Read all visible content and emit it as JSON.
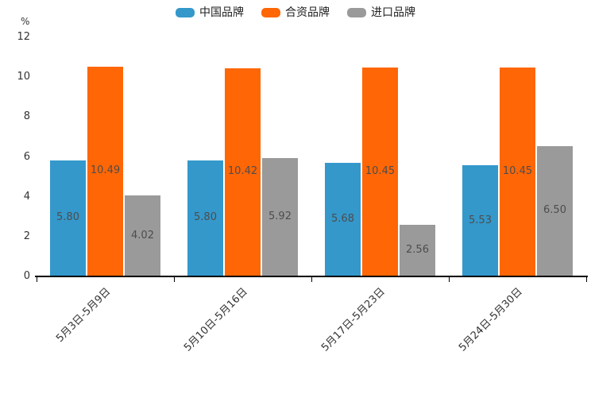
{
  "chart_data": {
    "type": "bar",
    "title": "",
    "ylabel": "%",
    "xlabel": "",
    "categories": [
      "5月3日-5月9日",
      "5月10日-5月16日",
      "5月17日-5月23日",
      "5月24日-5月30日"
    ],
    "series": [
      {
        "name": "中国品牌",
        "color": "#3498CB",
        "values": [
          5.8,
          5.8,
          5.68,
          5.53
        ],
        "value_labels": [
          "5.80",
          "5.80",
          "5.68",
          "5.53"
        ]
      },
      {
        "name": "合资品牌",
        "color": "#FF6605",
        "values": [
          10.49,
          10.42,
          10.45,
          10.45
        ],
        "value_labels": [
          "10.49",
          "10.42",
          "10.45",
          "10.45"
        ]
      },
      {
        "name": "进口品牌",
        "color": "#9A9A9A",
        "values": [
          4.02,
          5.92,
          2.56,
          6.5
        ],
        "value_labels": [
          "4.02",
          "5.92",
          "2.56",
          "6.50"
        ]
      }
    ],
    "ylim": [
      0,
      12
    ],
    "yticks": [
      0,
      2,
      4,
      6,
      8,
      10,
      12
    ],
    "legend_position": "top",
    "grid": false,
    "value_labels_inside_bars": true,
    "x_labels_rotated_degrees": 45,
    "colors": {
      "axis": "#000000",
      "tick_label": "#333333",
      "value_label": "#4d4d4d",
      "background": "#ffffff"
    }
  }
}
